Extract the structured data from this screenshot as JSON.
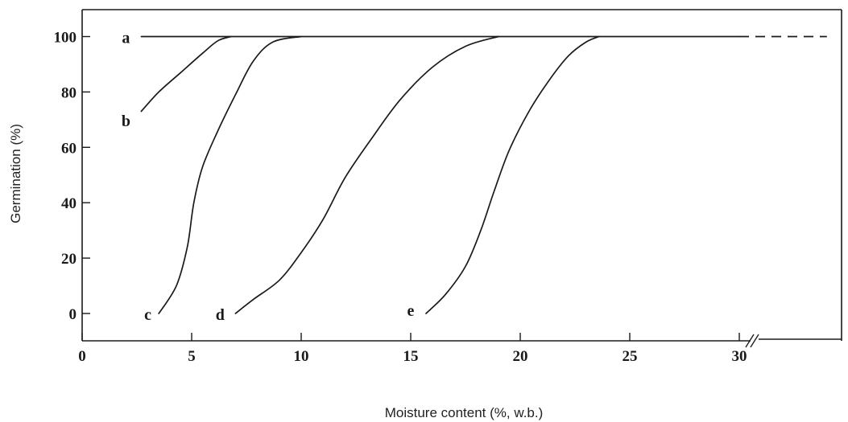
{
  "chart_data": {
    "type": "line",
    "title": "",
    "xlabel": "Moisture content (%, w.b.)",
    "ylabel": "Germination (%)",
    "xlim": [
      0,
      35
    ],
    "ylim": [
      -9,
      111
    ],
    "x_ticks": [
      "0",
      "5",
      "10",
      "15",
      "20",
      "25",
      "30"
    ],
    "y_ticks": [
      "0",
      "20",
      "40",
      "60",
      "80",
      "100"
    ],
    "axis_break_at_x": 30,
    "series": [
      {
        "name": "a",
        "points": [
          [
            2.7,
            100
          ],
          [
            30,
            100
          ]
        ],
        "dashed_extension": [
          [
            30,
            100
          ],
          [
            34,
            100
          ]
        ]
      },
      {
        "name": "b",
        "points": [
          [
            2.7,
            73
          ],
          [
            3.5,
            80
          ],
          [
            4.5,
            87
          ],
          [
            5.5,
            94
          ],
          [
            6.2,
            98.5
          ],
          [
            6.8,
            100
          ]
        ]
      },
      {
        "name": "c",
        "points": [
          [
            3.5,
            0
          ],
          [
            4.3,
            10
          ],
          [
            4.8,
            24
          ],
          [
            5.1,
            40
          ],
          [
            5.5,
            53
          ],
          [
            6.2,
            66
          ],
          [
            7.0,
            79
          ],
          [
            7.8,
            91
          ],
          [
            8.7,
            98
          ],
          [
            10.0,
            100
          ]
        ]
      },
      {
        "name": "d",
        "points": [
          [
            7.0,
            0
          ],
          [
            7.8,
            5
          ],
          [
            9.0,
            12
          ],
          [
            10.0,
            22
          ],
          [
            11.0,
            34
          ],
          [
            12.0,
            49
          ],
          [
            13.2,
            63
          ],
          [
            14.5,
            77
          ],
          [
            16.0,
            89
          ],
          [
            17.5,
            96.5
          ],
          [
            19.0,
            100
          ]
        ]
      },
      {
        "name": "e",
        "points": [
          [
            15.7,
            0
          ],
          [
            16.6,
            7
          ],
          [
            17.5,
            17
          ],
          [
            18.2,
            30
          ],
          [
            18.8,
            44
          ],
          [
            19.5,
            59
          ],
          [
            20.4,
            73
          ],
          [
            21.3,
            84
          ],
          [
            22.2,
            93
          ],
          [
            23.0,
            98
          ],
          [
            23.6,
            100
          ]
        ]
      }
    ],
    "curve_labels": [
      {
        "text": "a",
        "x": 2.0,
        "y": 100
      },
      {
        "text": "b",
        "x": 2.0,
        "y": 70
      },
      {
        "text": "c",
        "x": 3.0,
        "y": 0
      },
      {
        "text": "d",
        "x": 6.3,
        "y": 0
      },
      {
        "text": "e",
        "x": 15.0,
        "y": 1.5
      }
    ]
  }
}
